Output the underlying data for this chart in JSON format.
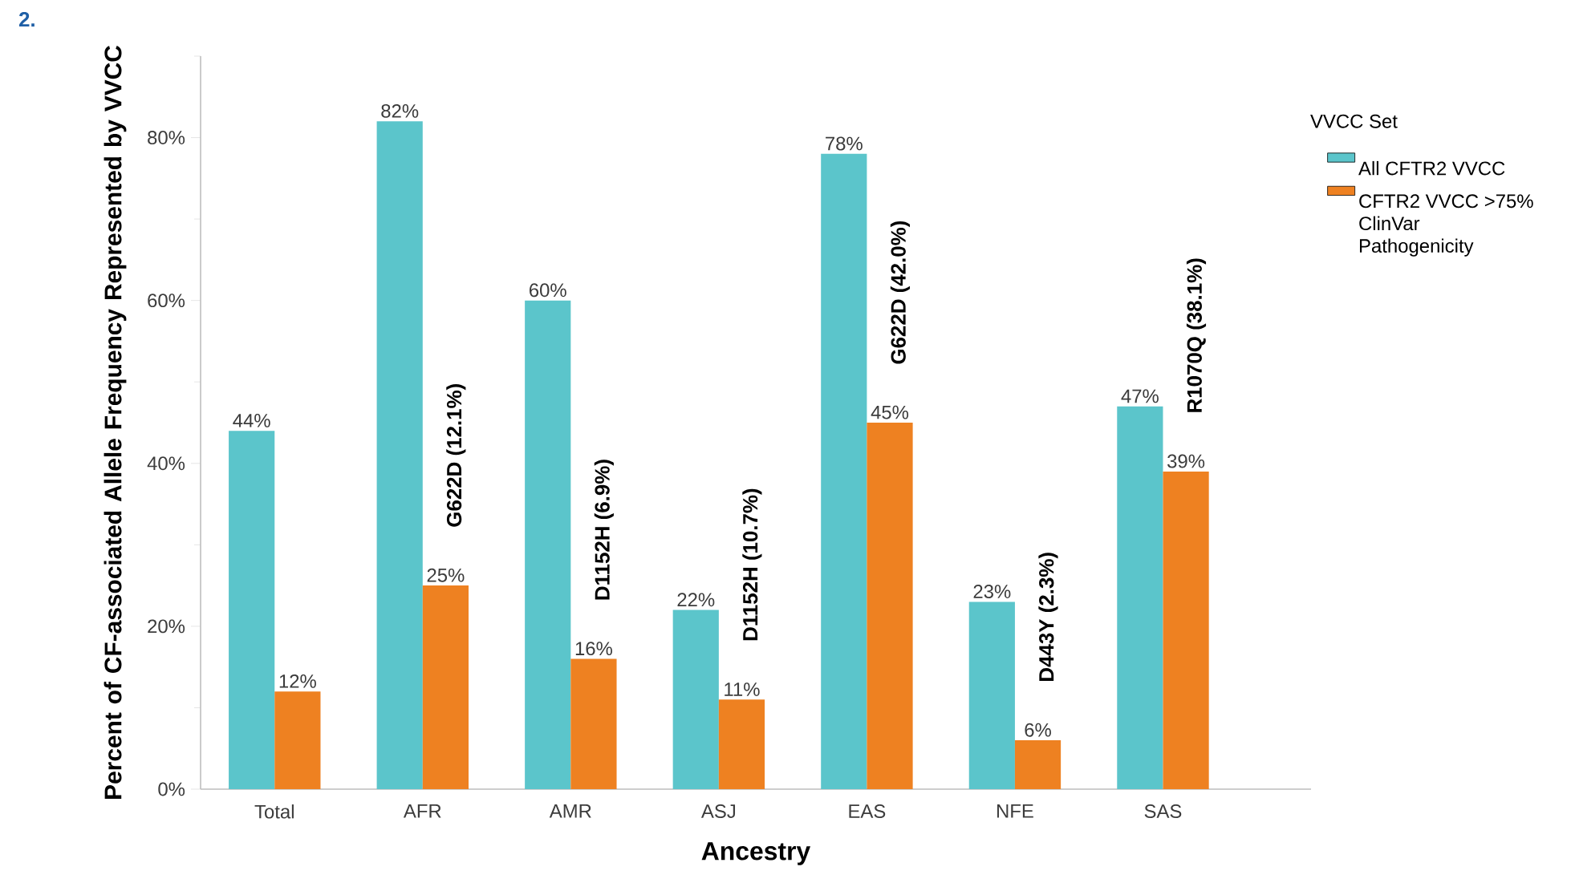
{
  "chart_data": {
    "type": "bar",
    "title": "2.",
    "xlabel": "Ancestry",
    "ylabel": "Percent of CF-associated Allele Frequency Represented by VVCC",
    "legend_title": "VVCC Set",
    "categories": [
      "Total",
      "AFR",
      "AMR",
      "ASJ",
      "EAS",
      "NFE",
      "SAS"
    ],
    "series": [
      {
        "name": "All CFTR2 VVCC",
        "color": "#5bc5cb",
        "values": [
          44,
          82,
          60,
          22,
          78,
          23,
          47
        ],
        "value_labels": [
          "44%",
          "82%",
          "60%",
          "22%",
          "78%",
          "23%",
          "47%"
        ]
      },
      {
        "name": "CFTR2 VVCC >75% ClinVar Pathogenicity",
        "color": "#ee8121",
        "values": [
          12,
          25,
          16,
          11,
          45,
          6,
          39
        ],
        "value_labels": [
          "12%",
          "25%",
          "16%",
          "11%",
          "45%",
          "6%",
          "39%"
        ]
      }
    ],
    "annotations": [
      "G622D (12.1%)",
      "D1152H (6.9%)",
      "D1152H (10.7%)",
      "G622D (42.0%)",
      "D443Y (2.3%)",
      "R1070Q (38.1%)"
    ],
    "ylim": [
      0,
      90
    ],
    "yticks": [
      {
        "value": 0,
        "label": "0%"
      },
      {
        "value": 10,
        "label": null
      },
      {
        "value": 20,
        "label": "20%"
      },
      {
        "value": 30,
        "label": null
      },
      {
        "value": 40,
        "label": "40%"
      },
      {
        "value": 50,
        "label": null
      },
      {
        "value": 60,
        "label": "60%"
      },
      {
        "value": 70,
        "label": null
      },
      {
        "value": 80,
        "label": "80%"
      },
      {
        "value": 90,
        "label": null
      }
    ],
    "legend": "right"
  }
}
